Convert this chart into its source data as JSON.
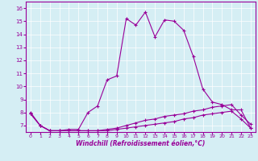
{
  "line_main_x": [
    0,
    1,
    2,
    3,
    4,
    5,
    6,
    7,
    8,
    9,
    10,
    11,
    12,
    13,
    14,
    15,
    16,
    17,
    18,
    19,
    20,
    21,
    22,
    23
  ],
  "line_main_y": [
    8.0,
    7.0,
    6.6,
    6.6,
    6.7,
    6.7,
    8.0,
    8.5,
    10.5,
    10.8,
    15.2,
    14.7,
    15.7,
    13.8,
    15.1,
    15.0,
    14.3,
    12.3,
    9.8,
    8.8,
    8.6,
    8.2,
    8.2,
    6.8
  ],
  "line2_x": [
    0,
    1,
    2,
    3,
    4,
    5,
    6,
    7,
    8,
    9,
    10,
    11,
    12,
    13,
    14,
    15,
    16,
    17,
    18,
    19,
    20,
    21,
    22,
    23
  ],
  "line2_y": [
    7.9,
    7.0,
    6.6,
    6.6,
    6.6,
    6.6,
    6.6,
    6.6,
    6.6,
    6.7,
    6.8,
    6.9,
    7.0,
    7.1,
    7.2,
    7.3,
    7.5,
    7.6,
    7.8,
    7.9,
    8.0,
    8.1,
    7.5,
    6.8
  ],
  "line3_x": [
    0,
    1,
    2,
    3,
    4,
    5,
    6,
    7,
    8,
    9,
    10,
    11,
    12,
    13,
    14,
    15,
    16,
    17,
    18,
    19,
    20,
    21,
    22,
    23
  ],
  "line3_y": [
    7.9,
    7.0,
    6.6,
    6.6,
    6.6,
    6.6,
    6.6,
    6.6,
    6.7,
    6.8,
    7.0,
    7.2,
    7.4,
    7.5,
    7.7,
    7.8,
    7.9,
    8.1,
    8.2,
    8.4,
    8.5,
    8.6,
    7.8,
    7.1
  ],
  "color": "#990099",
  "bg_color": "#d5eef4",
  "xlabel": "Windchill (Refroidissement éolien,°C)",
  "ylim": [
    6.5,
    16.5
  ],
  "xlim": [
    -0.5,
    23.5
  ],
  "yticks": [
    7,
    8,
    9,
    10,
    11,
    12,
    13,
    14,
    15,
    16
  ],
  "xticks": [
    0,
    1,
    2,
    3,
    4,
    5,
    6,
    7,
    8,
    9,
    10,
    11,
    12,
    13,
    14,
    15,
    16,
    17,
    18,
    19,
    20,
    21,
    22,
    23
  ]
}
